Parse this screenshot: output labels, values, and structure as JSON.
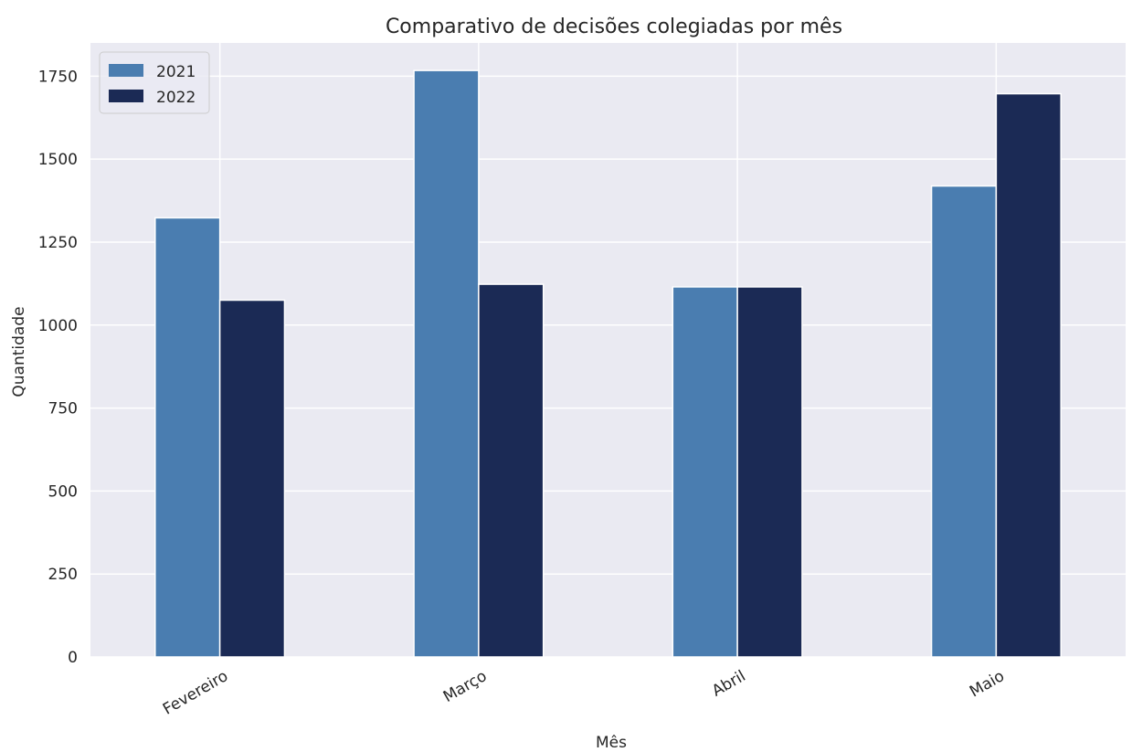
{
  "chart_data": {
    "type": "bar",
    "title": "Comparativo de decisões colegiadas por mês",
    "xlabel": "Mês",
    "ylabel": "Quantidade",
    "categories": [
      "Fevereiro",
      "Março",
      "Abril",
      "Maio"
    ],
    "series": [
      {
        "name": "2021",
        "values": [
          1323,
          1767,
          1115,
          1419
        ],
        "color": "#4a7db0"
      },
      {
        "name": "2022",
        "values": [
          1075,
          1123,
          1115,
          1697
        ],
        "color": "#1b2a55"
      }
    ],
    "ylim": [
      0,
      1850
    ],
    "yticks": [
      0,
      250,
      500,
      750,
      1000,
      1250,
      1500,
      1750
    ],
    "grid": true,
    "legend_position": "top-left",
    "colors": {
      "background": "#eaeaf2",
      "grid": "#ffffff"
    }
  }
}
